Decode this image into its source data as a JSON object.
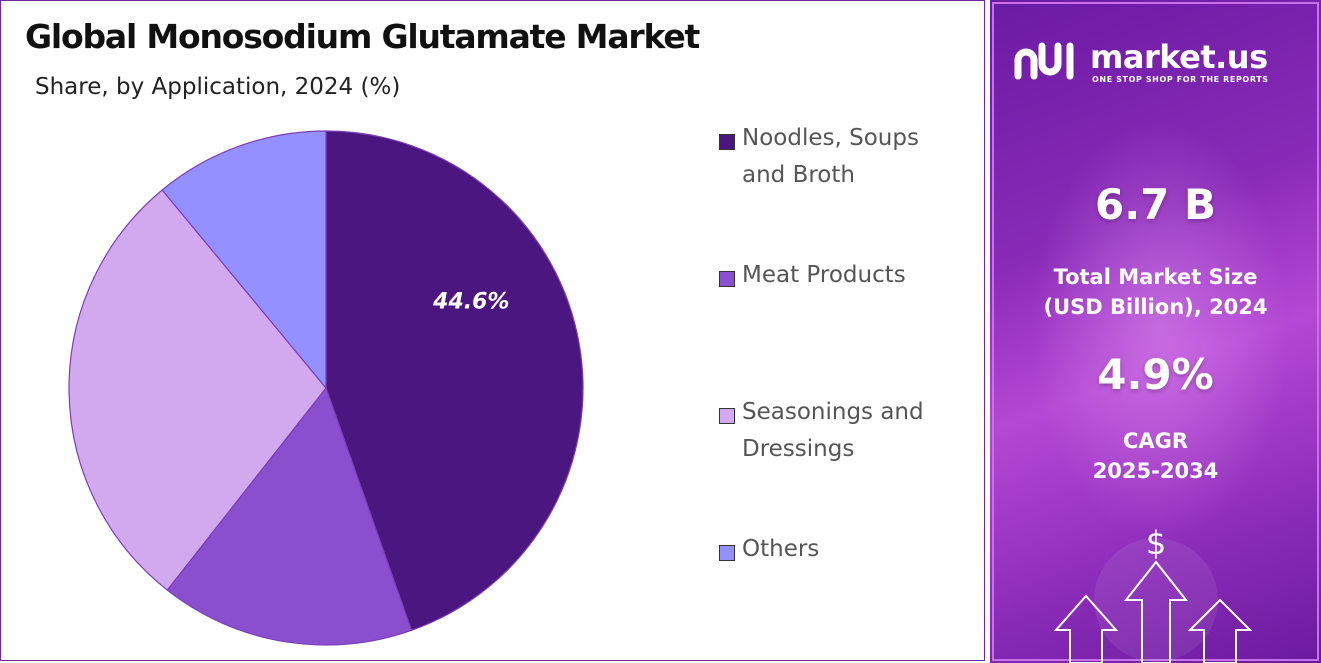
{
  "title": "Global Monosodium Glutamate Market",
  "subtitle": "Share, by Application, 2024 (%)",
  "chart_data": {
    "type": "pie",
    "title": "Global Monosodium Glutamate Market",
    "subtitle": "Share, by Application, 2024 (%)",
    "slices": [
      {
        "label": "Noodles, Soups and Broth",
        "value": 44.6,
        "color": "#4b1680",
        "show_label": true
      },
      {
        "label": "Meat Products",
        "value": 16.0,
        "color": "#8a4fcf",
        "show_label": false
      },
      {
        "label": "Seasonings and Dressings",
        "value": 28.4,
        "color": "#d2a8ee",
        "show_label": false
      },
      {
        "label": "Others",
        "value": 11.0,
        "color": "#9490ff",
        "show_label": false
      }
    ],
    "data_label_text": "44.6%",
    "legend_position": "right"
  },
  "legend": [
    {
      "label": "Noodles, Soups and Broth",
      "line1": "Noodles, Soups",
      "line2": "and Broth",
      "color": "#4b1680"
    },
    {
      "label": "Meat Products",
      "line1": "Meat Products",
      "line2": "",
      "color": "#8a4fcf"
    },
    {
      "label": "Seasonings and Dressings",
      "line1": "Seasonings and",
      "line2": "Dressings",
      "color": "#d2a8ee"
    },
    {
      "label": "Others",
      "line1": "Others",
      "line2": "",
      "color": "#9490ff"
    }
  ],
  "sidebar": {
    "brand_name": "market.us",
    "brand_tagline": "ONE STOP SHOP FOR THE REPORTS",
    "market_size_value": "6.7 B",
    "market_size_label_line1": "Total Market Size",
    "market_size_label_line2": "(USD Billion), 2024",
    "cagr_value": "4.9%",
    "cagr_label_line1": "CAGR",
    "cagr_label_line2": "2025-2034",
    "dollar_symbol": "$"
  },
  "colors": {
    "accent_dark": "#4b1680",
    "sidebar_gradient": "#8a2bb8"
  }
}
